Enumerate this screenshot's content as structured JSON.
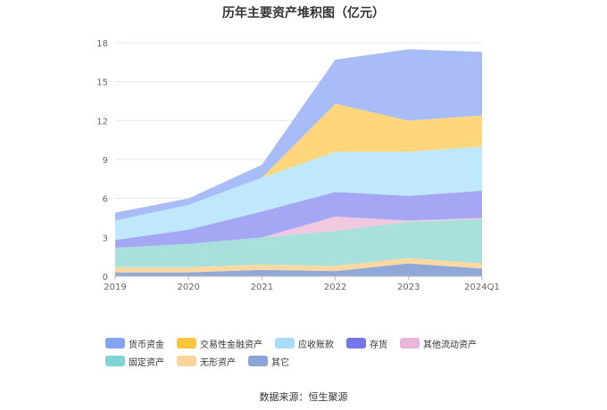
{
  "chart_data": {
    "type": "area",
    "stacked": true,
    "title": "历年主要资产堆积图（亿元）",
    "x": [
      "2019",
      "2020",
      "2021",
      "2022",
      "2023",
      "2024Q1"
    ],
    "ylim": [
      0,
      18
    ],
    "yticks": [
      0,
      3,
      6,
      9,
      12,
      15,
      18
    ],
    "grid": true,
    "legend_position": "bottom",
    "series": [
      {
        "name": "其它",
        "color": "#8fa8d8",
        "values": [
          0.3,
          0.3,
          0.5,
          0.4,
          1.0,
          0.6
        ]
      },
      {
        "name": "无形资产",
        "color": "#fdd8a0",
        "values": [
          0.4,
          0.4,
          0.4,
          0.4,
          0.4,
          0.4
        ]
      },
      {
        "name": "固定资产",
        "color": "#a8e0dc",
        "values": [
          1.5,
          1.8,
          2.1,
          2.7,
          2.8,
          3.4
        ]
      },
      {
        "name": "其他流动资产",
        "color": "#f0c8e0",
        "values": [
          0.0,
          0.0,
          0.0,
          1.1,
          0.1,
          0.1
        ]
      },
      {
        "name": "存货",
        "color": "#a4a8f4",
        "values": [
          0.6,
          1.1,
          2.0,
          1.9,
          1.9,
          2.1
        ]
      },
      {
        "name": "应收账款",
        "color": "#c0e8fc",
        "values": [
          1.5,
          1.9,
          2.6,
          3.1,
          3.4,
          3.4
        ]
      },
      {
        "name": "交易性金融资产",
        "color": "#ffd67c",
        "values": [
          0.0,
          0.0,
          0.0,
          3.7,
          2.4,
          2.4
        ]
      },
      {
        "name": "货币资金",
        "color": "#a8bcf8",
        "values": [
          0.6,
          0.5,
          1.0,
          3.4,
          5.5,
          4.9
        ]
      }
    ]
  },
  "legend": [
    {
      "label": "货币资金",
      "color": "#86a4f2"
    },
    {
      "label": "交易性金融资产",
      "color": "#fbc43c"
    },
    {
      "label": "应收账款",
      "color": "#a8ddf8"
    },
    {
      "label": "存货",
      "color": "#7476ea"
    },
    {
      "label": "其他流动资产",
      "color": "#e8b6d8"
    },
    {
      "label": "固定资产",
      "color": "#80d4d4"
    },
    {
      "label": "无形资产",
      "color": "#fdd49a"
    },
    {
      "label": "其它",
      "color": "#8aa4d6"
    }
  ],
  "source": "数据来源：恒生聚源"
}
